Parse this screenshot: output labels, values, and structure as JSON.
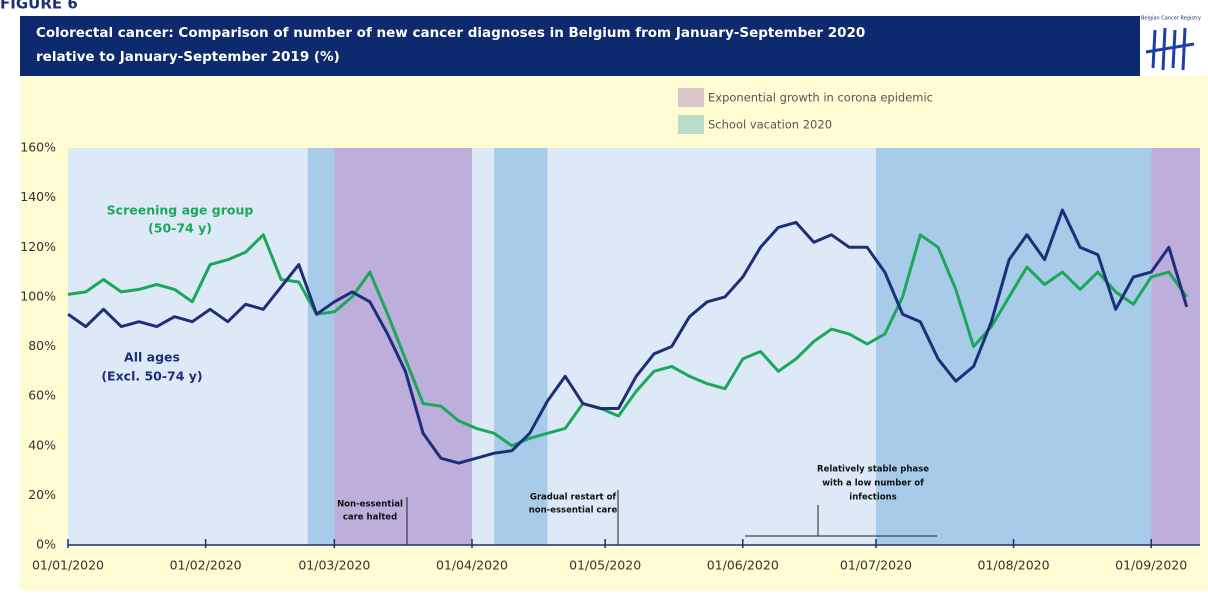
{
  "figure_label": "FIGURE 6",
  "logo_text": "Belgian Cancer Registry",
  "chart_data": {
    "type": "line",
    "title_lines": [
      "Colorectal cancer: Comparison of number of new cancer diagnoses in Belgium from January-September 2020",
      "relative to January-September 2019 (%)"
    ],
    "x": [
      "2020-01-01",
      "2020-01-05",
      "2020-01-09",
      "2020-01-13",
      "2020-01-17",
      "2020-01-21",
      "2020-01-25",
      "2020-01-29",
      "2020-02-02",
      "2020-02-06",
      "2020-02-10",
      "2020-02-14",
      "2020-02-18",
      "2020-02-22",
      "2020-02-26",
      "2020-03-01",
      "2020-03-05",
      "2020-03-09",
      "2020-03-13",
      "2020-03-17",
      "2020-03-21",
      "2020-03-25",
      "2020-03-29",
      "2020-04-02",
      "2020-04-06",
      "2020-04-10",
      "2020-04-14",
      "2020-04-18",
      "2020-04-22",
      "2020-04-26",
      "2020-04-30",
      "2020-05-04",
      "2020-05-08",
      "2020-05-12",
      "2020-05-16",
      "2020-05-20",
      "2020-05-24",
      "2020-05-28",
      "2020-06-01",
      "2020-06-05",
      "2020-06-09",
      "2020-06-13",
      "2020-06-17",
      "2020-06-21",
      "2020-06-25",
      "2020-06-29",
      "2020-07-03",
      "2020-07-07",
      "2020-07-11",
      "2020-07-15",
      "2020-07-19",
      "2020-07-23",
      "2020-07-27",
      "2020-07-31",
      "2020-08-04",
      "2020-08-08",
      "2020-08-12",
      "2020-08-16",
      "2020-08-20",
      "2020-08-24",
      "2020-08-28",
      "2020-09-01",
      "2020-09-05",
      "2020-09-09"
    ],
    "series": [
      {
        "label_lines": [
          "Screening age group",
          "(50-74 y)"
        ],
        "color": "#1ba85b",
        "values": [
          101,
          102,
          107,
          102,
          103,
          105,
          103,
          98,
          113,
          115,
          118,
          125,
          107,
          106,
          93,
          94,
          100,
          110,
          93,
          75,
          57,
          56,
          50,
          47,
          45,
          40,
          43,
          45,
          47,
          57,
          55,
          52,
          62,
          70,
          72,
          68,
          65,
          63,
          75,
          78,
          70,
          75,
          82,
          87,
          85,
          81,
          85,
          100,
          125,
          120,
          103,
          80,
          88,
          100,
          112,
          105,
          110,
          103,
          110,
          102,
          97,
          108,
          110,
          100
        ]
      },
      {
        "label_lines": [
          "All ages",
          "(Excl. 50-74 y)"
        ],
        "color": "#1c2f78",
        "values": [
          93,
          88,
          95,
          88,
          90,
          88,
          92,
          90,
          95,
          90,
          97,
          95,
          104,
          113,
          93,
          98,
          102,
          98,
          85,
          70,
          45,
          35,
          33,
          35,
          37,
          38,
          45,
          58,
          68,
          57,
          55,
          55,
          68,
          77,
          80,
          92,
          98,
          100,
          108,
          120,
          128,
          130,
          122,
          125,
          120,
          120,
          110,
          93,
          90,
          75,
          66,
          72,
          90,
          115,
          125,
          115,
          135,
          120,
          117,
          95,
          108,
          110,
          120,
          96
        ]
      }
    ],
    "shaded_periods": [
      {
        "name": "Exponential growth in corona epidemic",
        "color": "#bdaedb",
        "legend_color": "#d9c6c9",
        "ranges": [
          [
            "2020-03-01",
            "2020-04-01"
          ],
          [
            "2020-09-01",
            "2020-09-12"
          ]
        ]
      },
      {
        "name": "School vacation 2020",
        "color": "#a8cbea",
        "legend_color": "#bcdcca",
        "ranges": [
          [
            "2020-02-24",
            "2020-03-01"
          ],
          [
            "2020-04-06",
            "2020-04-18"
          ],
          [
            "2020-07-01",
            "2020-09-01"
          ]
        ]
      }
    ],
    "annotations": [
      {
        "lines": [
          "Non-essential",
          "care halted"
        ]
      },
      {
        "lines": [
          "Gradual restart of",
          "non-essential care"
        ]
      },
      {
        "lines": [
          "Relatively stable phase",
          "with a low number of",
          "infections"
        ]
      }
    ],
    "xlim": [
      "2020-01-01",
      "2020-09-12"
    ],
    "xticks": [
      {
        "value": "2020-01-01",
        "label": "01/01/2020"
      },
      {
        "value": "2020-02-01",
        "label": "01/02/2020"
      },
      {
        "value": "2020-03-01",
        "label": "01/03/2020"
      },
      {
        "value": "2020-04-01",
        "label": "01/04/2020"
      },
      {
        "value": "2020-05-01",
        "label": "01/05/2020"
      },
      {
        "value": "2020-06-01",
        "label": "01/06/2020"
      },
      {
        "value": "2020-07-01",
        "label": "01/07/2020"
      },
      {
        "value": "2020-08-01",
        "label": "01/08/2020"
      },
      {
        "value": "2020-09-01",
        "label": "01/09/2020"
      }
    ],
    "ylim": [
      0,
      160
    ],
    "yticks": [
      {
        "value": 0,
        "label": "0%"
      },
      {
        "value": 20,
        "label": "20%"
      },
      {
        "value": 40,
        "label": "40%"
      },
      {
        "value": 60,
        "label": "60%"
      },
      {
        "value": 80,
        "label": "80%"
      },
      {
        "value": 100,
        "label": "100%"
      },
      {
        "value": 120,
        "label": "120%"
      },
      {
        "value": 140,
        "label": "140%"
      },
      {
        "value": 160,
        "label": "160%"
      }
    ],
    "grid": false
  }
}
